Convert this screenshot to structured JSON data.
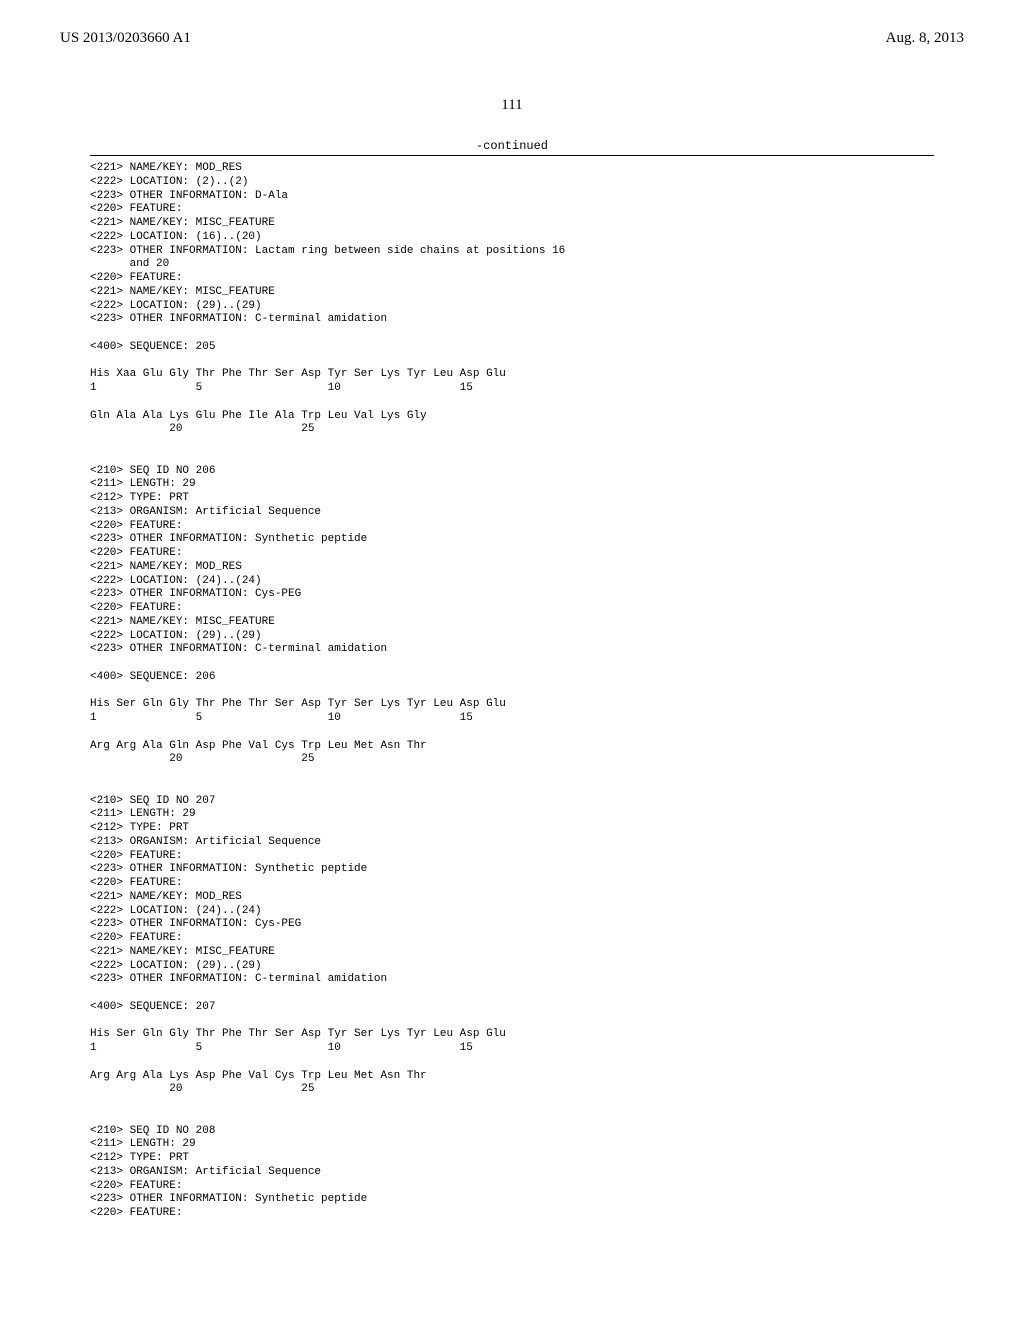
{
  "header": {
    "left": "US 2013/0203660 A1",
    "right": "Aug. 8, 2013"
  },
  "page_number": "111",
  "continued_label": "-continued",
  "sequence_text": "<221> NAME/KEY: MOD_RES\n<222> LOCATION: (2)..(2)\n<223> OTHER INFORMATION: D-Ala\n<220> FEATURE:\n<221> NAME/KEY: MISC_FEATURE\n<222> LOCATION: (16)..(20)\n<223> OTHER INFORMATION: Lactam ring between side chains at positions 16\n      and 20\n<220> FEATURE:\n<221> NAME/KEY: MISC_FEATURE\n<222> LOCATION: (29)..(29)\n<223> OTHER INFORMATION: C-terminal amidation\n\n<400> SEQUENCE: 205\n\nHis Xaa Glu Gly Thr Phe Thr Ser Asp Tyr Ser Lys Tyr Leu Asp Glu\n1               5                   10                  15\n\nGln Ala Ala Lys Glu Phe Ile Ala Trp Leu Val Lys Gly\n            20                  25\n\n\n<210> SEQ ID NO 206\n<211> LENGTH: 29\n<212> TYPE: PRT\n<213> ORGANISM: Artificial Sequence\n<220> FEATURE:\n<223> OTHER INFORMATION: Synthetic peptide\n<220> FEATURE:\n<221> NAME/KEY: MOD_RES\n<222> LOCATION: (24)..(24)\n<223> OTHER INFORMATION: Cys-PEG\n<220> FEATURE:\n<221> NAME/KEY: MISC_FEATURE\n<222> LOCATION: (29)..(29)\n<223> OTHER INFORMATION: C-terminal amidation\n\n<400> SEQUENCE: 206\n\nHis Ser Gln Gly Thr Phe Thr Ser Asp Tyr Ser Lys Tyr Leu Asp Glu\n1               5                   10                  15\n\nArg Arg Ala Gln Asp Phe Val Cys Trp Leu Met Asn Thr\n            20                  25\n\n\n<210> SEQ ID NO 207\n<211> LENGTH: 29\n<212> TYPE: PRT\n<213> ORGANISM: Artificial Sequence\n<220> FEATURE:\n<223> OTHER INFORMATION: Synthetic peptide\n<220> FEATURE:\n<221> NAME/KEY: MOD_RES\n<222> LOCATION: (24)..(24)\n<223> OTHER INFORMATION: Cys-PEG\n<220> FEATURE:\n<221> NAME/KEY: MISC_FEATURE\n<222> LOCATION: (29)..(29)\n<223> OTHER INFORMATION: C-terminal amidation\n\n<400> SEQUENCE: 207\n\nHis Ser Gln Gly Thr Phe Thr Ser Asp Tyr Ser Lys Tyr Leu Asp Glu\n1               5                   10                  15\n\nArg Arg Ala Lys Asp Phe Val Cys Trp Leu Met Asn Thr\n            20                  25\n\n\n<210> SEQ ID NO 208\n<211> LENGTH: 29\n<212> TYPE: PRT\n<213> ORGANISM: Artificial Sequence\n<220> FEATURE:\n<223> OTHER INFORMATION: Synthetic peptide\n<220> FEATURE:"
}
